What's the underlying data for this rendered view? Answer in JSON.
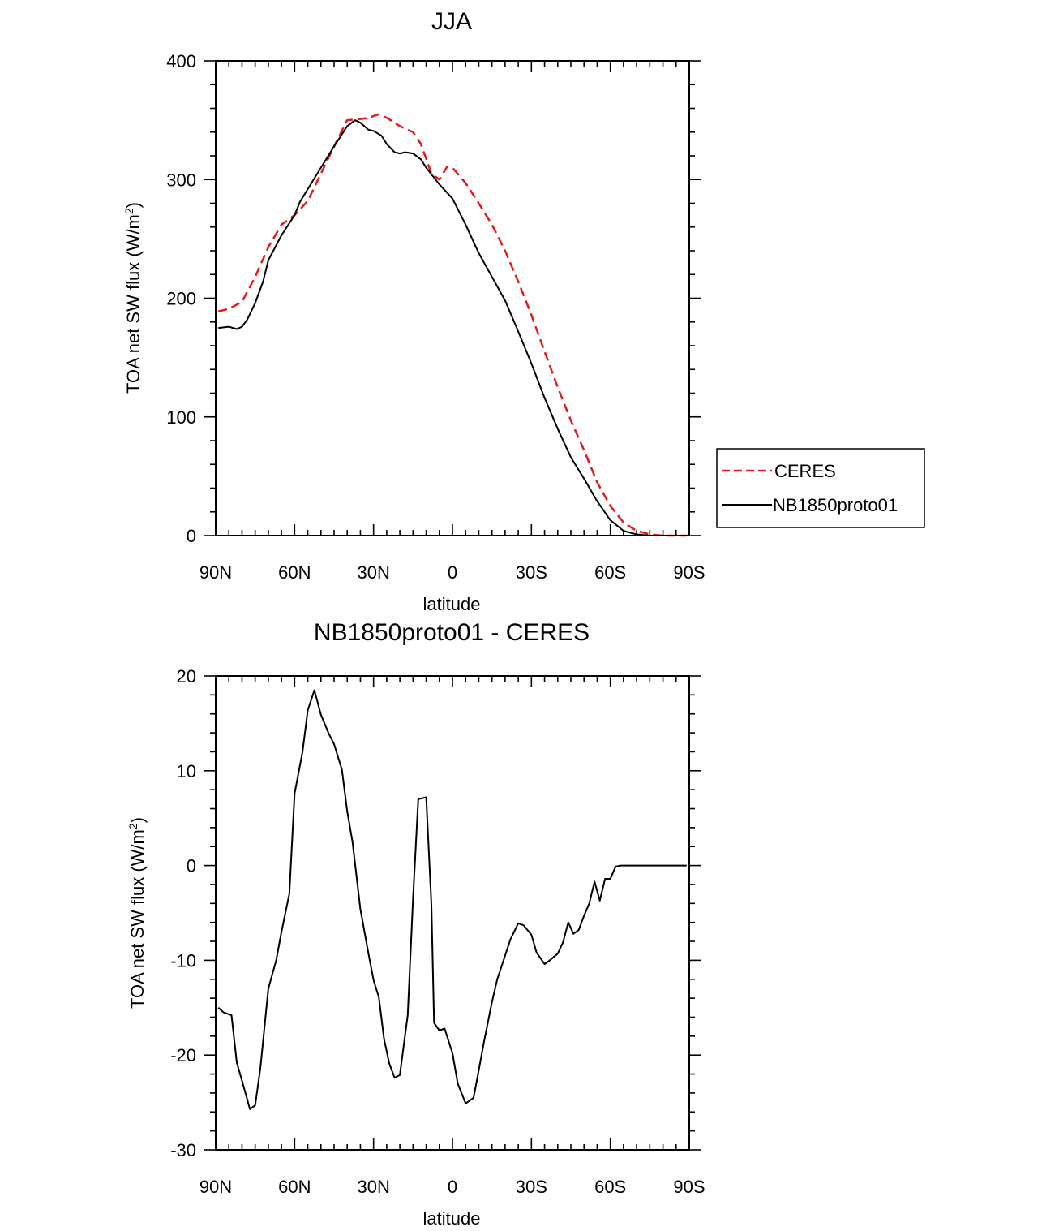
{
  "chart_data": [
    {
      "type": "line",
      "title": "JJA",
      "xlabel": "latitude",
      "ylabel": "TOA net SW flux (W/m",
      "ylabel_sup": "2",
      "ylabel_close": ")",
      "xlim": [
        90,
        -90
      ],
      "ylim": [
        0,
        400
      ],
      "xticks": [
        90,
        60,
        30,
        0,
        -30,
        -60,
        -90
      ],
      "xtick_labels": [
        "90N",
        "60N",
        "30N",
        "0",
        "30S",
        "60S",
        "90S"
      ],
      "yticks": [
        0,
        100,
        200,
        300,
        400
      ],
      "ytick_labels": [
        "0",
        "100",
        "200",
        "300",
        "400"
      ],
      "legend_position": "right, outside",
      "series": [
        {
          "name": "CERES",
          "color": "#e41a1c",
          "dash": "dashed",
          "x": [
            89,
            85,
            80,
            75,
            70,
            65,
            60,
            55,
            50,
            45,
            40,
            35,
            32,
            28,
            25,
            20,
            15,
            12,
            8,
            5,
            2,
            0,
            -5,
            -10,
            -15,
            -20,
            -25,
            -30,
            -35,
            -40,
            -45,
            -50,
            -55,
            -60,
            -65,
            -70,
            -75,
            -80,
            -85,
            -89
          ],
          "y": [
            189,
            191,
            197,
            218,
            243,
            262,
            270,
            282,
            305,
            328,
            350,
            351,
            352,
            355,
            352,
            345,
            340,
            330,
            305,
            300,
            311,
            310,
            297,
            280,
            262,
            240,
            214,
            186,
            155,
            125,
            97,
            72,
            45,
            25,
            11,
            4,
            1,
            0,
            0,
            0
          ]
        },
        {
          "name": "NB1850proto01",
          "color": "#000000",
          "dash": "solid",
          "x": [
            89,
            85,
            82,
            80,
            78,
            75,
            72,
            70,
            65,
            60,
            58,
            55,
            50,
            45,
            40,
            37,
            35,
            32,
            30,
            27,
            25,
            22,
            20,
            18,
            15,
            12,
            10,
            5,
            0,
            -5,
            -10,
            -15,
            -20,
            -25,
            -30,
            -35,
            -40,
            -45,
            -50,
            -55,
            -60,
            -65,
            -70,
            -75,
            -80,
            -85,
            -89
          ],
          "y": [
            175,
            176,
            174,
            176,
            182,
            196,
            214,
            232,
            253,
            270,
            281,
            292,
            310,
            328,
            345,
            350,
            348,
            342,
            341,
            337,
            330,
            323,
            322,
            323,
            322,
            317,
            310,
            296,
            284,
            262,
            238,
            218,
            198,
            172,
            145,
            116,
            90,
            66,
            48,
            29,
            13,
            4,
            1,
            0,
            0,
            0,
            0
          ]
        }
      ]
    },
    {
      "type": "line",
      "title": "NB1850proto01 - CERES",
      "xlabel": "latitude",
      "ylabel": "TOA net SW flux (W/m",
      "ylabel_sup": "2",
      "ylabel_close": ")",
      "xlim": [
        90,
        -90
      ],
      "ylim": [
        -30,
        20
      ],
      "xticks": [
        90,
        60,
        30,
        0,
        -30,
        -60,
        -90
      ],
      "xtick_labels": [
        "90N",
        "60N",
        "30N",
        "0",
        "30S",
        "60S",
        "90S"
      ],
      "yticks": [
        -30,
        -20,
        -10,
        0,
        10,
        20
      ],
      "ytick_labels": [
        "-30",
        "-20",
        "-10",
        "0",
        "10",
        "20"
      ],
      "series": [
        {
          "name": "NB1850proto01 - CERES",
          "color": "#000000",
          "dash": "solid",
          "x": [
            89,
            87,
            84,
            82,
            80,
            77,
            75,
            73,
            70,
            67,
            65,
            62,
            60,
            57,
            55,
            52.5,
            50,
            47,
            45,
            42,
            40,
            38,
            35,
            32,
            30,
            28,
            26,
            24,
            22,
            20,
            17,
            15,
            13,
            10,
            8,
            7,
            5,
            3,
            0,
            -2,
            -5,
            -8,
            -10,
            -12,
            -15,
            -17,
            -20,
            -22,
            -25,
            -27,
            -30,
            -32,
            -35,
            -37,
            -40,
            -42,
            -44,
            -46,
            -48,
            -50,
            -52,
            -54,
            -56,
            -58,
            -60,
            -62,
            -64,
            -67,
            -69,
            -72,
            -74,
            -77,
            -80,
            -83,
            -86,
            -89
          ],
          "y": [
            -15,
            -15.5,
            -15.8,
            -20.8,
            -22.7,
            -25.7,
            -25.3,
            -21.3,
            -13,
            -10,
            -7,
            -3,
            7.6,
            12,
            16.4,
            18.5,
            15.9,
            13.9,
            12.8,
            10.1,
            5.7,
            2.5,
            -4.6,
            -9.2,
            -12.1,
            -13.9,
            -18.3,
            -20.9,
            -22.4,
            -22.1,
            -15.8,
            -3.6,
            7,
            7.2,
            -4.1,
            -16.6,
            -17.4,
            -17.2,
            -19.8,
            -23,
            -25.1,
            -24.5,
            -21.6,
            -18.6,
            -14.4,
            -12,
            -9.5,
            -7.8,
            -6.1,
            -6.3,
            -7.3,
            -9.2,
            -10.4,
            -10,
            -9.3,
            -8.1,
            -6,
            -7.2,
            -6.8,
            -5.3,
            -4,
            -1.7,
            -3.7,
            -1.4,
            -1.4,
            -0.1,
            0,
            0,
            0,
            0,
            0,
            0,
            0,
            0,
            0,
            0
          ]
        }
      ]
    }
  ]
}
